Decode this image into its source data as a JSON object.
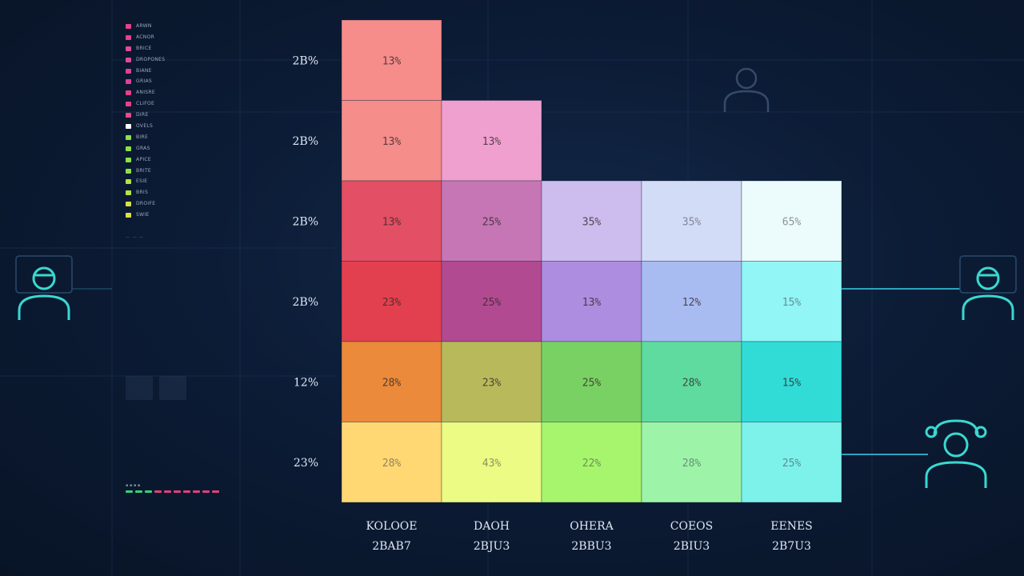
{
  "legend": {
    "items": [
      {
        "label": "ARWN",
        "color": "#e8408a"
      },
      {
        "label": "ACNOR",
        "color": "#e8408a"
      },
      {
        "label": "BRICE",
        "color": "#e04a9a"
      },
      {
        "label": "DROPONES",
        "color": "#e04a9a"
      },
      {
        "label": "BIANE",
        "color": "#e0409a"
      },
      {
        "label": "GRIAS",
        "color": "#e0409a"
      },
      {
        "label": "ANISRE",
        "color": "#e8408a"
      },
      {
        "label": "CLIFOE",
        "color": "#e8408a"
      },
      {
        "label": "DIRE",
        "color": "#e84a8a"
      },
      {
        "label": "OVELS",
        "color": "#ffffff"
      },
      {
        "label": "BIRE",
        "color": "#8fe048"
      },
      {
        "label": "GRAS",
        "color": "#8fe048"
      },
      {
        "label": "APICE",
        "color": "#8fe048"
      },
      {
        "label": "BRITE",
        "color": "#8fe048"
      },
      {
        "label": "ESIE",
        "color": "#b8e048"
      },
      {
        "label": "BRIS",
        "color": "#b8e048"
      },
      {
        "label": "DROIFE",
        "color": "#d8e048"
      },
      {
        "label": "SWIE",
        "color": "#d8e048"
      }
    ],
    "footnote": "— — —"
  },
  "status": {
    "text": "▪ ▪ ▪ ▪",
    "dots": [
      "#36d27a",
      "#36d27a",
      "#36d27a",
      "#e0407a",
      "#e0407a",
      "#e0407a",
      "#e0407a",
      "#e0407a",
      "#e0407a",
      "#e0407a"
    ]
  },
  "chart_data": {
    "type": "heatmap",
    "title": "",
    "xlabel": "",
    "ylabel": "",
    "columns": [
      {
        "name": "KOLOOE",
        "sub": "2BAB7"
      },
      {
        "name": "DAOH",
        "sub": "2BJU3"
      },
      {
        "name": "OHERA",
        "sub": "2BBU3"
      },
      {
        "name": "COEOS",
        "sub": "2BIU3"
      },
      {
        "name": "EENES",
        "sub": "2B7U3"
      }
    ],
    "rows": [
      "2B%",
      "2B%",
      "2B%",
      "2B%",
      "12%",
      "23%"
    ],
    "values": [
      [
        "13%",
        null,
        null,
        null,
        null
      ],
      [
        "13%",
        "13%",
        null,
        null,
        null
      ],
      [
        "13%",
        "25%",
        "35%",
        "35%",
        "65%"
      ],
      [
        "23%",
        "25%",
        "13%",
        "12%",
        "15%"
      ],
      [
        "28%",
        "23%",
        "25%",
        "28%",
        "15%"
      ],
      [
        "28%",
        "43%",
        "22%",
        "28%",
        "25%"
      ]
    ],
    "colors": [
      [
        "#f68d8b",
        null,
        null,
        null,
        null
      ],
      [
        "#f58d8b",
        "#f0a0cf",
        null,
        null,
        null
      ],
      [
        "#e34f64",
        "#c676b5",
        "#cdbcee",
        "#d3dcf7",
        "#ecfcfd"
      ],
      [
        "#e2404f",
        "#b24a91",
        "#ad8ddf",
        "#a9bcf2",
        "#92f5f6"
      ],
      [
        "#ea8a3a",
        "#b8b95a",
        "#79d163",
        "#5fdb9f",
        "#31dcd7"
      ],
      [
        "#ffd873",
        "#ebfb83",
        "#a7f56d",
        "#9df4a8",
        "#7cf2eb"
      ]
    ],
    "legend": "left",
    "grid": false
  }
}
